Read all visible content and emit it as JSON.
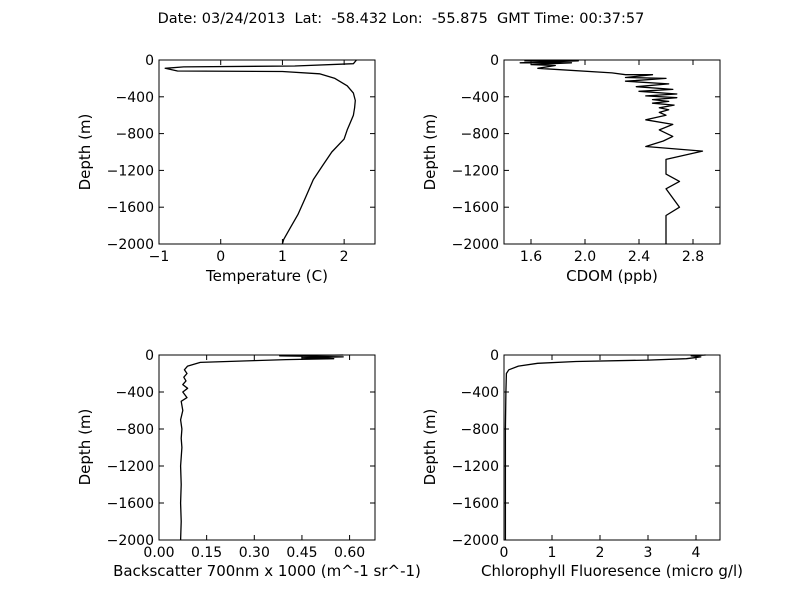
{
  "figure": {
    "title": "Date: 03/24/2013  Lat:  -58.432 Lon:  -55.875  GMT Time: 00:37:57"
  },
  "chart_data": [
    {
      "type": "line",
      "id": "temperature",
      "xlabel": "Temperature (C)",
      "ylabel": "Depth (m)",
      "xlim": [
        -1,
        2.5
      ],
      "ylim": [
        -2000,
        0
      ],
      "xticks": [
        -1,
        0,
        1,
        2
      ],
      "xtick_labels": [
        "−1",
        "0",
        "1",
        "2"
      ],
      "yticks": [
        0,
        -400,
        -800,
        -1200,
        -1600,
        -2000
      ],
      "ytick_labels": [
        "0",
        "−400",
        "−800",
        "−1200",
        "−1600",
        "−2000"
      ],
      "series": [
        {
          "x": [
            2.2,
            2.15,
            1.2,
            -0.6,
            -0.9,
            -0.7,
            1.0,
            1.6,
            1.85,
            2.05,
            2.15,
            2.18,
            2.17,
            2.15,
            2.1,
            2.05,
            2.0,
            1.8,
            1.65,
            1.5,
            1.37,
            1.25,
            1.13,
            1.02,
            1.0
          ],
          "y": [
            0,
            -40,
            -65,
            -75,
            -90,
            -120,
            -125,
            -150,
            -200,
            -280,
            -360,
            -440,
            -520,
            -600,
            -680,
            -760,
            -860,
            -1000,
            -1150,
            -1300,
            -1500,
            -1680,
            -1820,
            -1950,
            -2000
          ]
        }
      ]
    },
    {
      "type": "line",
      "id": "cdom",
      "xlabel": "CDOM (ppb)",
      "ylabel": "Depth (m)",
      "xlim": [
        1.4,
        3.0
      ],
      "ylim": [
        -2000,
        0
      ],
      "xticks": [
        1.6,
        2.0,
        2.4,
        2.8
      ],
      "xtick_labels": [
        "1.6",
        "2.0",
        "2.4",
        "2.8"
      ],
      "yticks": [
        0,
        -400,
        -800,
        -1200,
        -1600,
        -2000
      ],
      "ytick_labels": [
        "0",
        "−400",
        "−800",
        "−1200",
        "−1600",
        "−2000"
      ],
      "series": [
        {
          "x": [
            1.55,
            1.95,
            1.52,
            1.9,
            1.6,
            1.78,
            1.65,
            2.2,
            2.3,
            2.5,
            2.3,
            2.6,
            2.3,
            2.62,
            2.38,
            2.65,
            2.4,
            2.68,
            2.45,
            2.68,
            2.5,
            2.62,
            2.5,
            2.66,
            2.55,
            2.62,
            2.55,
            2.6,
            2.45,
            2.65,
            2.55,
            2.65,
            2.58,
            2.45,
            2.87,
            2.6,
            2.6,
            2.7,
            2.6,
            2.7,
            2.6,
            2.6
          ],
          "y": [
            -10,
            -10,
            -30,
            -30,
            -50,
            -60,
            -90,
            -140,
            -160,
            -160,
            -190,
            -200,
            -230,
            -260,
            -290,
            -320,
            -340,
            -370,
            -390,
            -410,
            -430,
            -450,
            -470,
            -490,
            -520,
            -540,
            -570,
            -600,
            -650,
            -700,
            -760,
            -830,
            -880,
            -940,
            -990,
            -1080,
            -1240,
            -1320,
            -1400,
            -1600,
            -1690,
            -2000
          ]
        }
      ]
    },
    {
      "type": "line",
      "id": "backscatter",
      "xlabel": "Backscatter 700nm x 1000 (m^-1 sr^-1)",
      "ylabel": "Depth (m)",
      "xlim": [
        0.0,
        0.68
      ],
      "ylim": [
        -2000,
        0
      ],
      "xticks": [
        0.0,
        0.15,
        0.3,
        0.45,
        0.6
      ],
      "xtick_labels": [
        "0.00",
        "0.15",
        "0.30",
        "0.45",
        "0.60"
      ],
      "yticks": [
        0,
        -400,
        -800,
        -1200,
        -1600,
        -2000
      ],
      "ytick_labels": [
        "0",
        "−400",
        "−800",
        "−1200",
        "−1600",
        "−2000"
      ],
      "series": [
        {
          "x": [
            0.58,
            0.38,
            0.58,
            0.45,
            0.55,
            0.4,
            0.3,
            0.13,
            0.09,
            0.08,
            0.088,
            0.078,
            0.085,
            0.075,
            0.09,
            0.075,
            0.088,
            0.07,
            0.075,
            0.068,
            0.072,
            0.07,
            0.072,
            0.068,
            0.07,
            0.068,
            0.07,
            0.068
          ],
          "y": [
            0,
            -10,
            -20,
            -30,
            -40,
            -50,
            -60,
            -80,
            -120,
            -160,
            -200,
            -240,
            -280,
            -320,
            -360,
            -400,
            -460,
            -500,
            -600,
            -700,
            -800,
            -900,
            -1000,
            -1200,
            -1400,
            -1600,
            -1800,
            -2000
          ]
        }
      ]
    },
    {
      "type": "line",
      "id": "chlorophyll",
      "xlabel": "Chlorophyll Fluoresence (micro g/l)",
      "ylabel": "Depth (m)",
      "xlim": [
        0,
        4.5
      ],
      "ylim": [
        -2000,
        0
      ],
      "xticks": [
        0,
        1,
        2,
        3,
        4
      ],
      "xtick_labels": [
        "0",
        "1",
        "2",
        "3",
        "4"
      ],
      "yticks": [
        0,
        -400,
        -800,
        -1200,
        -1600,
        -2000
      ],
      "ytick_labels": [
        "0",
        "−400",
        "−800",
        "−1200",
        "−1600",
        "−2000"
      ],
      "series": [
        {
          "x": [
            4.2,
            3.9,
            4.1,
            3.95,
            3.8,
            3.0,
            1.5,
            0.7,
            0.3,
            0.1,
            0.05,
            0.04,
            0.03,
            0.03,
            0.03
          ],
          "y": [
            0,
            -10,
            -20,
            -30,
            -40,
            -55,
            -70,
            -90,
            -120,
            -160,
            -200,
            -400,
            -800,
            -1400,
            -2000
          ]
        }
      ]
    }
  ]
}
